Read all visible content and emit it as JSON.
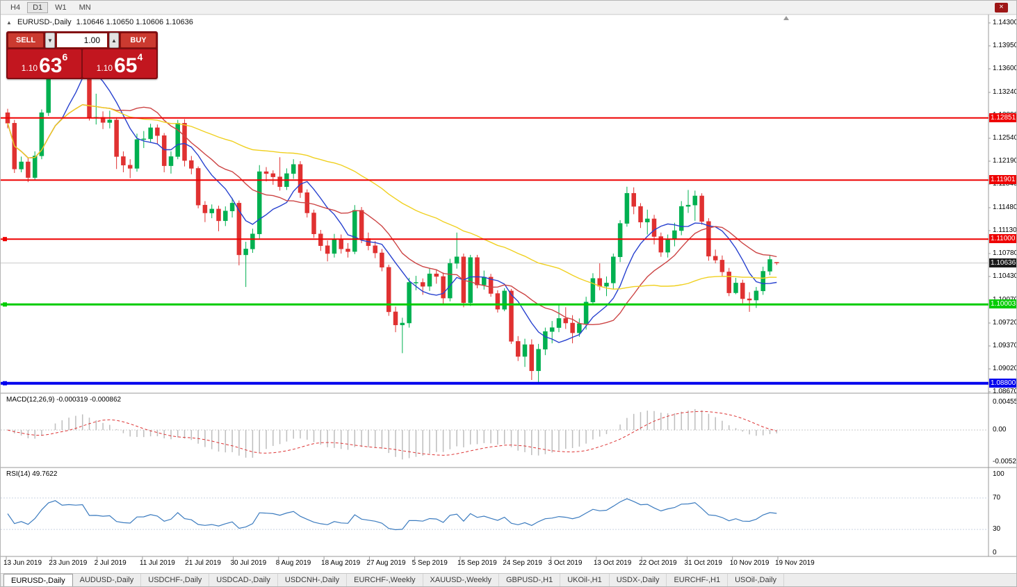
{
  "toolbar": {
    "timeframes": [
      {
        "label": "H4",
        "active": false
      },
      {
        "label": "D1",
        "active": true
      },
      {
        "label": "W1",
        "active": false
      },
      {
        "label": "MN",
        "active": false
      }
    ]
  },
  "window_controls": {
    "close_icon": "×"
  },
  "chart_header": {
    "collapse_icon": "▲",
    "title": "EURUSD-,Daily",
    "ohlc_text": "1.10646 1.10650 1.10606 1.10636"
  },
  "trade_panel": {
    "sell_label": "SELL",
    "buy_label": "BUY",
    "volume": "1.00",
    "spinner_down_icon": "▼",
    "spinner_up_icon": "▲",
    "sell_price": {
      "prefix": "1.10",
      "big": "63",
      "sup": "6"
    },
    "buy_price": {
      "prefix": "1.10",
      "big": "65",
      "sup": "4"
    }
  },
  "price_axis_labels": [
    "1.14300",
    "1.13950",
    "1.13600",
    "1.13240",
    "1.12890",
    "1.12540",
    "1.12190",
    "1.11840",
    "1.11480",
    "1.11130",
    "1.10780",
    "1.10430",
    "1.10070",
    "1.09720",
    "1.09370",
    "1.09020",
    "1.08670"
  ],
  "levels": [
    {
      "label": "1.12851",
      "price": 1.12851,
      "color": "#ee0000",
      "thickness": 2,
      "handle": false
    },
    {
      "label": "1.11901",
      "price": 1.11901,
      "color": "#ee0000",
      "thickness": 2,
      "handle": false
    },
    {
      "label": "1.11000",
      "price": 1.11,
      "color": "#ee0000",
      "thickness": 2,
      "handle": true
    },
    {
      "label": "1.10003",
      "price": 1.10003,
      "color": "#00cc00",
      "thickness": 3,
      "handle": true
    },
    {
      "label": "1.08800",
      "price": 1.088,
      "color": "#0000ee",
      "thickness": 4,
      "handle": true
    }
  ],
  "current_price": {
    "label": "1.10636",
    "price": 1.10636,
    "badge_color": "#1a1a1a"
  },
  "indicators": {
    "macd": {
      "label": "MACD(12,26,9) -0.000319 -0.000862",
      "axis": [
        "0.0045536",
        "0.00",
        "-0.0052055"
      ]
    },
    "rsi": {
      "label": "RSI(14) 49.7622",
      "axis": [
        "100",
        "70",
        "30",
        "0"
      ],
      "level_lines": [
        70,
        30
      ]
    }
  },
  "time_axis_labels": [
    "13 Jun 2019",
    "23 Jun 2019",
    "2 Jul 2019",
    "11 Jul 2019",
    "21 Jul 2019",
    "30 Jul 2019",
    "8 Aug 2019",
    "18 Aug 2019",
    "27 Aug 2019",
    "5 Sep 2019",
    "15 Sep 2019",
    "24 Sep 2019",
    "3 Oct 2019",
    "13 Oct 2019",
    "22 Oct 2019",
    "31 Oct 2019",
    "10 Nov 2019",
    "19 Nov 2019"
  ],
  "tabs": [
    {
      "label": "EURUSD-,Daily",
      "active": true
    },
    {
      "label": "AUDUSD-,Daily",
      "active": false
    },
    {
      "label": "USDCHF-,Daily",
      "active": false
    },
    {
      "label": "USDCAD-,Daily",
      "active": false
    },
    {
      "label": "USDCNH-,Daily",
      "active": false
    },
    {
      "label": "EURCHF-,Weekly",
      "active": false
    },
    {
      "label": "XAUUSD-,Weekly",
      "active": false
    },
    {
      "label": "GBPUSD-,H1",
      "active": false
    },
    {
      "label": "UKOil-,H1",
      "active": false
    },
    {
      "label": "USDX-,Daily",
      "active": false
    },
    {
      "label": "EURCHF-,H1",
      "active": false
    },
    {
      "label": "USOil-,Daily",
      "active": false
    }
  ],
  "chart_data": {
    "type": "candlestick",
    "symbol": "EURUSD",
    "period": "Daily",
    "ylim": [
      1.0867,
      1.143
    ],
    "colors": {
      "up": "#00b050",
      "down": "#e03131",
      "ma_fast": "#2741cf",
      "ma_mid": "#cc4444",
      "ma_slow": "#f0d01f",
      "macd_hist": "#bdbdbd",
      "macd_signal": "#dd3333",
      "rsi_line": "#3b7bbf",
      "bid_line": "#c9c9c9"
    },
    "moving_averages": [
      {
        "period": 8,
        "colorKey": "ma_fast"
      },
      {
        "period": 16,
        "colorKey": "ma_mid"
      },
      {
        "period": 45,
        "colorKey": "ma_slow"
      }
    ],
    "macd_params": {
      "fast": 12,
      "slow": 26,
      "signal": 9
    },
    "rsi_params": {
      "period": 14
    },
    "candles": [
      [
        1.1293,
        1.1299,
        1.1269,
        1.1277
      ],
      [
        1.1277,
        1.1282,
        1.1201,
        1.1207
      ],
      [
        1.1207,
        1.1226,
        1.1202,
        1.1218
      ],
      [
        1.1218,
        1.1225,
        1.1187,
        1.1194
      ],
      [
        1.1194,
        1.1234,
        1.119,
        1.1227
      ],
      [
        1.1227,
        1.1298,
        1.1222,
        1.1293
      ],
      [
        1.1293,
        1.1378,
        1.1288,
        1.1369
      ],
      [
        1.1369,
        1.141,
        1.1362,
        1.1399
      ],
      [
        1.1399,
        1.1404,
        1.1344,
        1.1365
      ],
      [
        1.1365,
        1.1391,
        1.1357,
        1.1372
      ],
      [
        1.1372,
        1.1381,
        1.1348,
        1.1368
      ],
      [
        1.1368,
        1.139,
        1.1362,
        1.1373
      ],
      [
        1.1373,
        1.1377,
        1.1281,
        1.1285
      ],
      [
        1.1285,
        1.1322,
        1.1275,
        1.1286
      ],
      [
        1.1286,
        1.1295,
        1.1268,
        1.1278
      ],
      [
        1.1278,
        1.1296,
        1.1269,
        1.1282
      ],
      [
        1.1282,
        1.1286,
        1.1207,
        1.1226
      ],
      [
        1.1226,
        1.1234,
        1.1202,
        1.1213
      ],
      [
        1.1213,
        1.1222,
        1.1193,
        1.1208
      ],
      [
        1.1208,
        1.1261,
        1.1203,
        1.1252
      ],
      [
        1.1252,
        1.1265,
        1.1239,
        1.1253
      ],
      [
        1.1253,
        1.1276,
        1.1248,
        1.127
      ],
      [
        1.127,
        1.1275,
        1.1245,
        1.1258
      ],
      [
        1.1258,
        1.1262,
        1.1202,
        1.1212
      ],
      [
        1.1212,
        1.1234,
        1.12,
        1.1226
      ],
      [
        1.1226,
        1.1282,
        1.1222,
        1.1277
      ],
      [
        1.1277,
        1.1283,
        1.1211,
        1.122
      ],
      [
        1.122,
        1.1227,
        1.1199,
        1.1208
      ],
      [
        1.1208,
        1.1211,
        1.1147,
        1.1152
      ],
      [
        1.1152,
        1.1158,
        1.1126,
        1.114
      ],
      [
        1.114,
        1.1153,
        1.1132,
        1.1146
      ],
      [
        1.1146,
        1.1151,
        1.1112,
        1.1128
      ],
      [
        1.1128,
        1.115,
        1.112,
        1.1143
      ],
      [
        1.1143,
        1.1163,
        1.1133,
        1.1155
      ],
      [
        1.1155,
        1.1159,
        1.106,
        1.1076
      ],
      [
        1.1076,
        1.1096,
        1.1027,
        1.1085
      ],
      [
        1.1085,
        1.1116,
        1.1079,
        1.1108
      ],
      [
        1.1108,
        1.1213,
        1.1101,
        1.1203
      ],
      [
        1.1203,
        1.121,
        1.1188,
        1.12
      ],
      [
        1.12,
        1.1205,
        1.1183,
        1.1195
      ],
      [
        1.1195,
        1.1225,
        1.1174,
        1.118
      ],
      [
        1.118,
        1.1208,
        1.1175,
        1.12
      ],
      [
        1.12,
        1.1222,
        1.1192,
        1.1214
      ],
      [
        1.1214,
        1.1219,
        1.1163,
        1.1171
      ],
      [
        1.1171,
        1.1176,
        1.1133,
        1.114
      ],
      [
        1.114,
        1.1145,
        1.1102,
        1.1108
      ],
      [
        1.1108,
        1.1114,
        1.1082,
        1.109
      ],
      [
        1.109,
        1.1098,
        1.1066,
        1.1078
      ],
      [
        1.1078,
        1.1108,
        1.1072,
        1.11
      ],
      [
        1.11,
        1.1107,
        1.1078,
        1.1085
      ],
      [
        1.1085,
        1.1094,
        1.1072,
        1.1081
      ],
      [
        1.1081,
        1.1152,
        1.1077,
        1.1144
      ],
      [
        1.1144,
        1.1149,
        1.1094,
        1.1101
      ],
      [
        1.1101,
        1.111,
        1.1083,
        1.109
      ],
      [
        1.109,
        1.1097,
        1.1071,
        1.1079
      ],
      [
        1.1079,
        1.1085,
        1.1051,
        1.1057
      ],
      [
        1.1057,
        1.1061,
        1.0983,
        1.0989
      ],
      [
        1.0989,
        1.0997,
        1.0958,
        1.0969
      ],
      [
        1.0969,
        1.098,
        1.0926,
        1.0972
      ],
      [
        1.0972,
        1.1041,
        1.0965,
        1.1034
      ],
      [
        1.1034,
        1.1044,
        1.1022,
        1.1034
      ],
      [
        1.1034,
        1.104,
        1.1015,
        1.1028
      ],
      [
        1.1028,
        1.1056,
        1.1021,
        1.1047
      ],
      [
        1.1047,
        1.1053,
        1.1032,
        1.1043
      ],
      [
        1.1043,
        1.1049,
        1.1001,
        1.101
      ],
      [
        1.101,
        1.107,
        1.1005,
        1.1063
      ],
      [
        1.1063,
        1.111,
        1.1055,
        1.1073
      ],
      [
        1.1073,
        1.1078,
        1.0996,
        1.1003
      ],
      [
        1.1003,
        1.1076,
        1.0998,
        1.1072
      ],
      [
        1.1072,
        1.1076,
        1.1025,
        1.103
      ],
      [
        1.103,
        1.1052,
        1.1023,
        1.1042
      ],
      [
        1.1042,
        1.1047,
        1.1012,
        1.1017
      ],
      [
        1.1017,
        1.1022,
        1.0988,
        1.0993
      ],
      [
        1.0993,
        1.1025,
        1.099,
        1.1021
      ],
      [
        1.1021,
        1.1024,
        1.094,
        1.0944
      ],
      [
        1.0944,
        1.0952,
        1.0914,
        1.0921
      ],
      [
        1.0921,
        1.0948,
        1.0905,
        1.0939
      ],
      [
        1.0939,
        1.0947,
        1.0885,
        1.0899
      ],
      [
        1.0899,
        1.094,
        1.0879,
        1.0932
      ],
      [
        1.0932,
        1.0965,
        1.0923,
        1.0959
      ],
      [
        1.0959,
        1.0975,
        1.0941,
        1.0965
      ],
      [
        1.0965,
        1.0999,
        1.0958,
        1.0979
      ],
      [
        1.0979,
        1.0996,
        1.0963,
        1.0972
      ],
      [
        1.0972,
        1.0984,
        1.0941,
        1.0957
      ],
      [
        1.0957,
        1.0979,
        1.0951,
        1.0971
      ],
      [
        1.0971,
        1.1012,
        1.0962,
        1.1004
      ],
      [
        1.1004,
        1.1048,
        1.0999,
        1.104
      ],
      [
        1.104,
        1.1063,
        1.1022,
        1.1028
      ],
      [
        1.1028,
        1.1043,
        1.1013,
        1.1033
      ],
      [
        1.1033,
        1.1078,
        1.1024,
        1.1073
      ],
      [
        1.1073,
        1.1129,
        1.1065,
        1.1124
      ],
      [
        1.1124,
        1.118,
        1.1119,
        1.117
      ],
      [
        1.117,
        1.1179,
        1.1138,
        1.115
      ],
      [
        1.115,
        1.1155,
        1.1117,
        1.1126
      ],
      [
        1.1126,
        1.1145,
        1.1107,
        1.1131
      ],
      [
        1.1131,
        1.1137,
        1.1092,
        1.1104
      ],
      [
        1.1104,
        1.111,
        1.1073,
        1.108
      ],
      [
        1.108,
        1.1107,
        1.1072,
        1.11
      ],
      [
        1.11,
        1.1125,
        1.1089,
        1.1113
      ],
      [
        1.1113,
        1.1158,
        1.1106,
        1.115
      ],
      [
        1.115,
        1.1175,
        1.114,
        1.1152
      ],
      [
        1.1152,
        1.1174,
        1.1128,
        1.1166
      ],
      [
        1.1166,
        1.117,
        1.1122,
        1.1127
      ],
      [
        1.1127,
        1.1132,
        1.1067,
        1.1074
      ],
      [
        1.1074,
        1.1084,
        1.1063,
        1.1068
      ],
      [
        1.1068,
        1.1075,
        1.1043,
        1.105
      ],
      [
        1.105,
        1.1056,
        1.1013,
        1.1018
      ],
      [
        1.1018,
        1.1041,
        1.1016,
        1.1033
      ],
      [
        1.1033,
        1.1038,
        1.1002,
        1.1009
      ],
      [
        1.1009,
        1.1019,
        1.0989,
        1.1007
      ],
      [
        1.1007,
        1.1027,
        1.0995,
        1.1021
      ],
      [
        1.1021,
        1.1058,
        1.1015,
        1.1051
      ],
      [
        1.1051,
        1.1075,
        1.1045,
        1.1069
      ],
      [
        1.10646,
        1.1065,
        1.10606,
        1.10636
      ]
    ]
  }
}
